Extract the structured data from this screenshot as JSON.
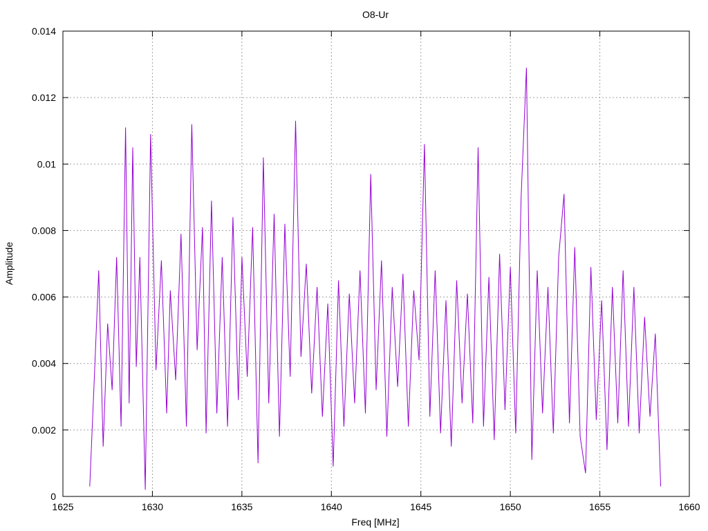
{
  "chart_data": {
    "type": "line",
    "title": "O8-Ur",
    "xlabel": "Freq [MHz]",
    "ylabel": "Amplitude",
    "xlim": [
      1625,
      1660
    ],
    "ylim": [
      0,
      0.014
    ],
    "x_ticks": [
      {
        "value": 1625,
        "label": "1625"
      },
      {
        "value": 1630,
        "label": "1630"
      },
      {
        "value": 1635,
        "label": "1635"
      },
      {
        "value": 1640,
        "label": "1640"
      },
      {
        "value": 1645,
        "label": "1645"
      },
      {
        "value": 1650,
        "label": "1650"
      },
      {
        "value": 1655,
        "label": "1655"
      },
      {
        "value": 1660,
        "label": "1660"
      }
    ],
    "y_ticks": [
      {
        "value": 0,
        "label": "0"
      },
      {
        "value": 0.002,
        "label": "0.002"
      },
      {
        "value": 0.004,
        "label": "0.004"
      },
      {
        "value": 0.006,
        "label": "0.006"
      },
      {
        "value": 0.008,
        "label": "0.008"
      },
      {
        "value": 0.01,
        "label": "0.01"
      },
      {
        "value": 0.012,
        "label": "0.012"
      },
      {
        "value": 0.014,
        "label": "0.014"
      }
    ],
    "grid": true,
    "legend": false,
    "series": [
      {
        "color": "#9400d3",
        "x": [
          1626.5,
          1626.75,
          1627.0,
          1627.25,
          1627.5,
          1627.75,
          1628.0,
          1628.25,
          1628.5,
          1628.7,
          1628.9,
          1629.1,
          1629.3,
          1629.6,
          1629.9,
          1630.2,
          1630.5,
          1630.8,
          1631.0,
          1631.3,
          1631.6,
          1631.9,
          1632.2,
          1632.5,
          1632.8,
          1633.0,
          1633.3,
          1633.6,
          1633.9,
          1634.2,
          1634.5,
          1634.8,
          1635.0,
          1635.3,
          1635.6,
          1635.9,
          1636.2,
          1636.5,
          1636.8,
          1637.1,
          1637.4,
          1637.7,
          1638.0,
          1638.3,
          1638.6,
          1638.9,
          1639.2,
          1639.5,
          1639.8,
          1640.1,
          1640.4,
          1640.7,
          1641.0,
          1641.3,
          1641.6,
          1641.9,
          1642.2,
          1642.5,
          1642.8,
          1643.1,
          1643.4,
          1643.7,
          1644.0,
          1644.3,
          1644.6,
          1644.9,
          1645.2,
          1645.5,
          1645.8,
          1646.1,
          1646.4,
          1646.7,
          1647.0,
          1647.3,
          1647.6,
          1647.9,
          1648.2,
          1648.5,
          1648.8,
          1649.1,
          1649.4,
          1649.7,
          1650.0,
          1650.3,
          1650.6,
          1650.9,
          1651.2,
          1651.5,
          1651.8,
          1652.1,
          1652.4,
          1652.7,
          1653.0,
          1653.3,
          1653.6,
          1653.9,
          1654.2,
          1654.5,
          1654.8,
          1655.1,
          1655.4,
          1655.7,
          1656.0,
          1656.3,
          1656.6,
          1656.9,
          1657.2,
          1657.5,
          1657.8,
          1658.1,
          1658.4
        ],
        "y": [
          0.0003,
          0.0035,
          0.0068,
          0.0015,
          0.0052,
          0.0032,
          0.0072,
          0.0021,
          0.0111,
          0.0028,
          0.0105,
          0.0039,
          0.0072,
          0.0002,
          0.0109,
          0.0038,
          0.0071,
          0.0025,
          0.0062,
          0.0035,
          0.0079,
          0.0021,
          0.0112,
          0.0044,
          0.0081,
          0.0019,
          0.0089,
          0.0025,
          0.0072,
          0.0021,
          0.0084,
          0.0029,
          0.0072,
          0.0036,
          0.0081,
          0.001,
          0.0102,
          0.0028,
          0.0085,
          0.0018,
          0.0082,
          0.0036,
          0.0113,
          0.0042,
          0.007,
          0.0031,
          0.0063,
          0.0024,
          0.0058,
          0.0009,
          0.0065,
          0.0021,
          0.0061,
          0.0028,
          0.0068,
          0.0025,
          0.0097,
          0.0032,
          0.0071,
          0.0018,
          0.0063,
          0.0033,
          0.0067,
          0.0021,
          0.0062,
          0.0041,
          0.0106,
          0.0024,
          0.0068,
          0.0019,
          0.0059,
          0.0015,
          0.0065,
          0.0028,
          0.0061,
          0.0022,
          0.0105,
          0.0021,
          0.0066,
          0.0017,
          0.0073,
          0.0026,
          0.0069,
          0.0019,
          0.009,
          0.0129,
          0.0011,
          0.0068,
          0.0025,
          0.0063,
          0.0019,
          0.0072,
          0.0091,
          0.0022,
          0.0075,
          0.0018,
          0.0007,
          0.0069,
          0.0023,
          0.0059,
          0.0014,
          0.0063,
          0.0022,
          0.0068,
          0.0021,
          0.0063,
          0.0019,
          0.0054,
          0.0024,
          0.0049,
          0.0003
        ]
      }
    ]
  }
}
